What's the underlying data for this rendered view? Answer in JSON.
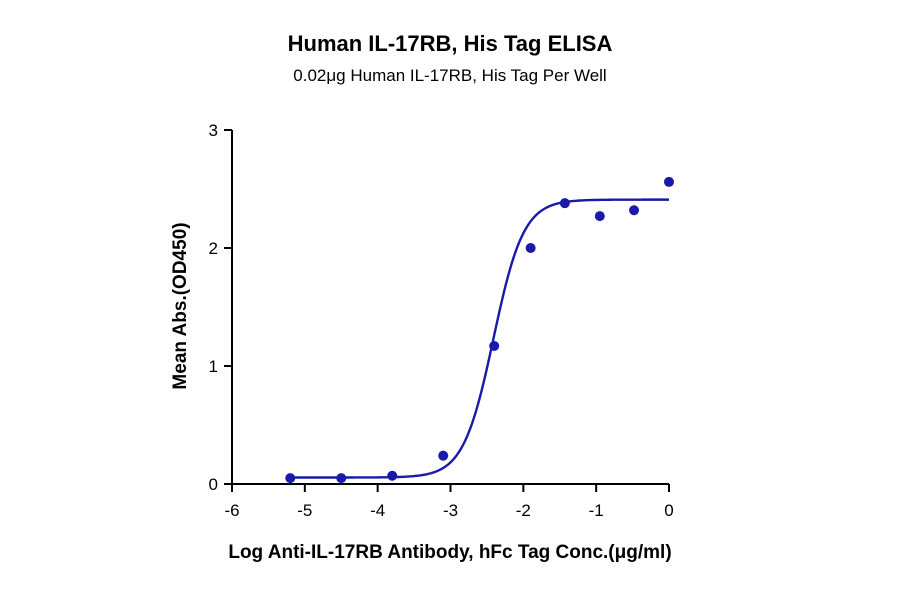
{
  "chart_data": {
    "type": "scatter",
    "title": "Human IL-17RB, His Tag ELISA",
    "subtitle": "0.02μg Human IL-17RB, His Tag Per Well",
    "xlabel": "Log Anti-IL-17RB Antibody, hFc Tag Conc.(μg/ml)",
    "ylabel": "Mean Abs.(OD450)",
    "xlim": [
      -6,
      0
    ],
    "ylim": [
      0,
      3
    ],
    "xticks": [
      "-6",
      "-5",
      "-4",
      "-3",
      "-2",
      "-1",
      "0"
    ],
    "yticks": [
      "0",
      "1",
      "2",
      "3"
    ],
    "grid": false,
    "color": "#1a1aaa",
    "series": [
      {
        "x": [
          -5.2,
          -4.5,
          -3.8,
          -3.1,
          -2.4,
          -1.9,
          -1.43,
          -0.95,
          -0.48,
          0.0
        ],
        "y": [
          0.05,
          0.05,
          0.07,
          0.24,
          1.17,
          2.0,
          2.38,
          2.27,
          2.32,
          2.56
        ]
      }
    ],
    "fit": {
      "model": "4PL",
      "bottom": 0.055,
      "top": 2.41,
      "logEC50": -2.41,
      "hill": 2.1
    }
  }
}
